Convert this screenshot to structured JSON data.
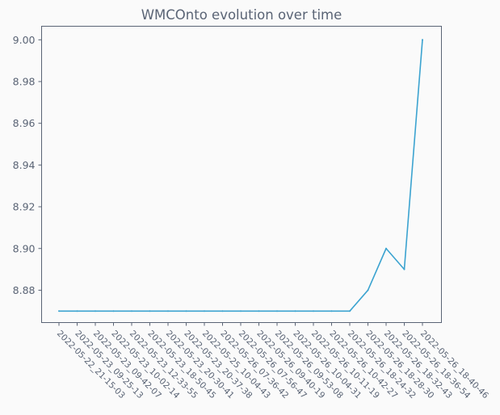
{
  "chart_data": {
    "type": "line",
    "title": "WMCOnto evolution over time",
    "xlabel": "",
    "ylabel": "",
    "categories": [
      "2022-05-22_21-15-03",
      "2022-05-23_09-25-13",
      "2022-05-23_09-42-07",
      "2022-05-23_10-02-14",
      "2022-05-23_12-33-55",
      "2022-05-23_18-50-45",
      "2022-05-23_20-30-41",
      "2022-05-23_20-37-38",
      "2022-05-25_10-04-43",
      "2022-05-26_07-36-42",
      "2022-05-26_07-56-47",
      "2022-05-26_09-40-19",
      "2022-05-26_09-53-08",
      "2022-05-26_10-04-31",
      "2022-05-26_10-11-19",
      "2022-05-26_10-42-27",
      "2022-05-26_18-24-32",
      "2022-05-26_18-28-30",
      "2022-05-26_18-32-43",
      "2022-05-26_18-36-54",
      "2022-05-26_18-40-46"
    ],
    "values": [
      8.87,
      8.87,
      8.87,
      8.87,
      8.87,
      8.87,
      8.87,
      8.87,
      8.87,
      8.87,
      8.87,
      8.87,
      8.87,
      8.87,
      8.87,
      8.87,
      8.87,
      8.88,
      8.9,
      8.89,
      9.0
    ],
    "yticks": [
      "8.88",
      "8.90",
      "8.92",
      "8.94",
      "8.96",
      "8.98",
      "9.00"
    ],
    "ylim": [
      8.8645,
      9.0065
    ],
    "grid": false,
    "colors": {
      "line": "#3ba3d0",
      "axis": "#5a6475",
      "background": "#fafafa",
      "text": "#5a6475"
    }
  }
}
